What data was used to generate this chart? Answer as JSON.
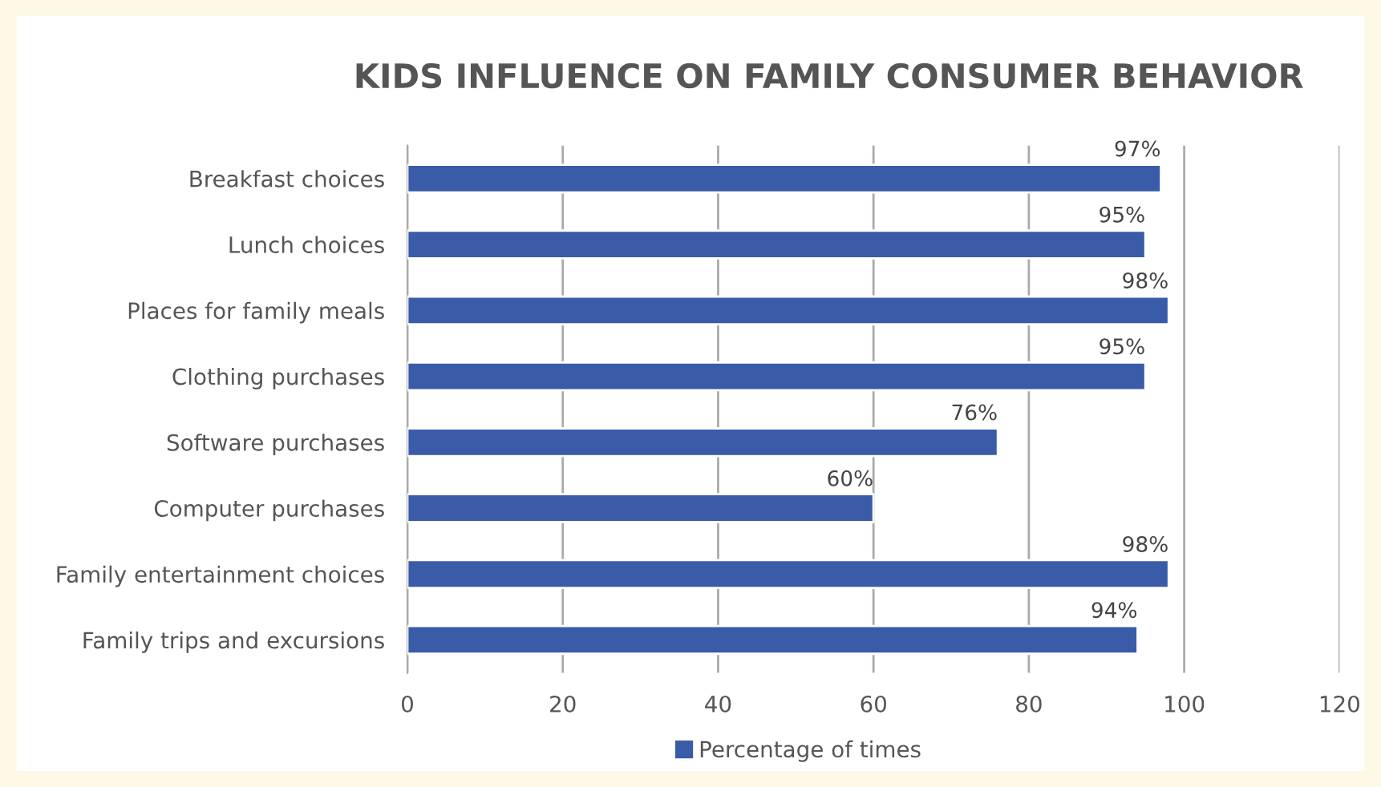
{
  "chart_data": {
    "type": "bar",
    "orientation": "horizontal",
    "title": "KIDS INFLUENCE ON FAMILY CONSUMER BEHAVIOR",
    "categories": [
      "Breakfast choices",
      "Lunch choices",
      "Places for family meals",
      "Clothing purchases",
      "Software purchases",
      "Computer purchases",
      "Family entertainment choices",
      "Family trips and excursions"
    ],
    "series": [
      {
        "name": "Percentage of times",
        "color": "#3a5ba8",
        "values": [
          97,
          95,
          98,
          95,
          76,
          60,
          98,
          94
        ],
        "value_labels": [
          "97%",
          "95%",
          "98%",
          "95%",
          "76%",
          "60%",
          "98%",
          "94%"
        ]
      }
    ],
    "xlim": [
      0,
      120
    ],
    "xticks": [
      0,
      20,
      40,
      60,
      80,
      100,
      120
    ],
    "grid": "x",
    "legend": "bottom"
  }
}
